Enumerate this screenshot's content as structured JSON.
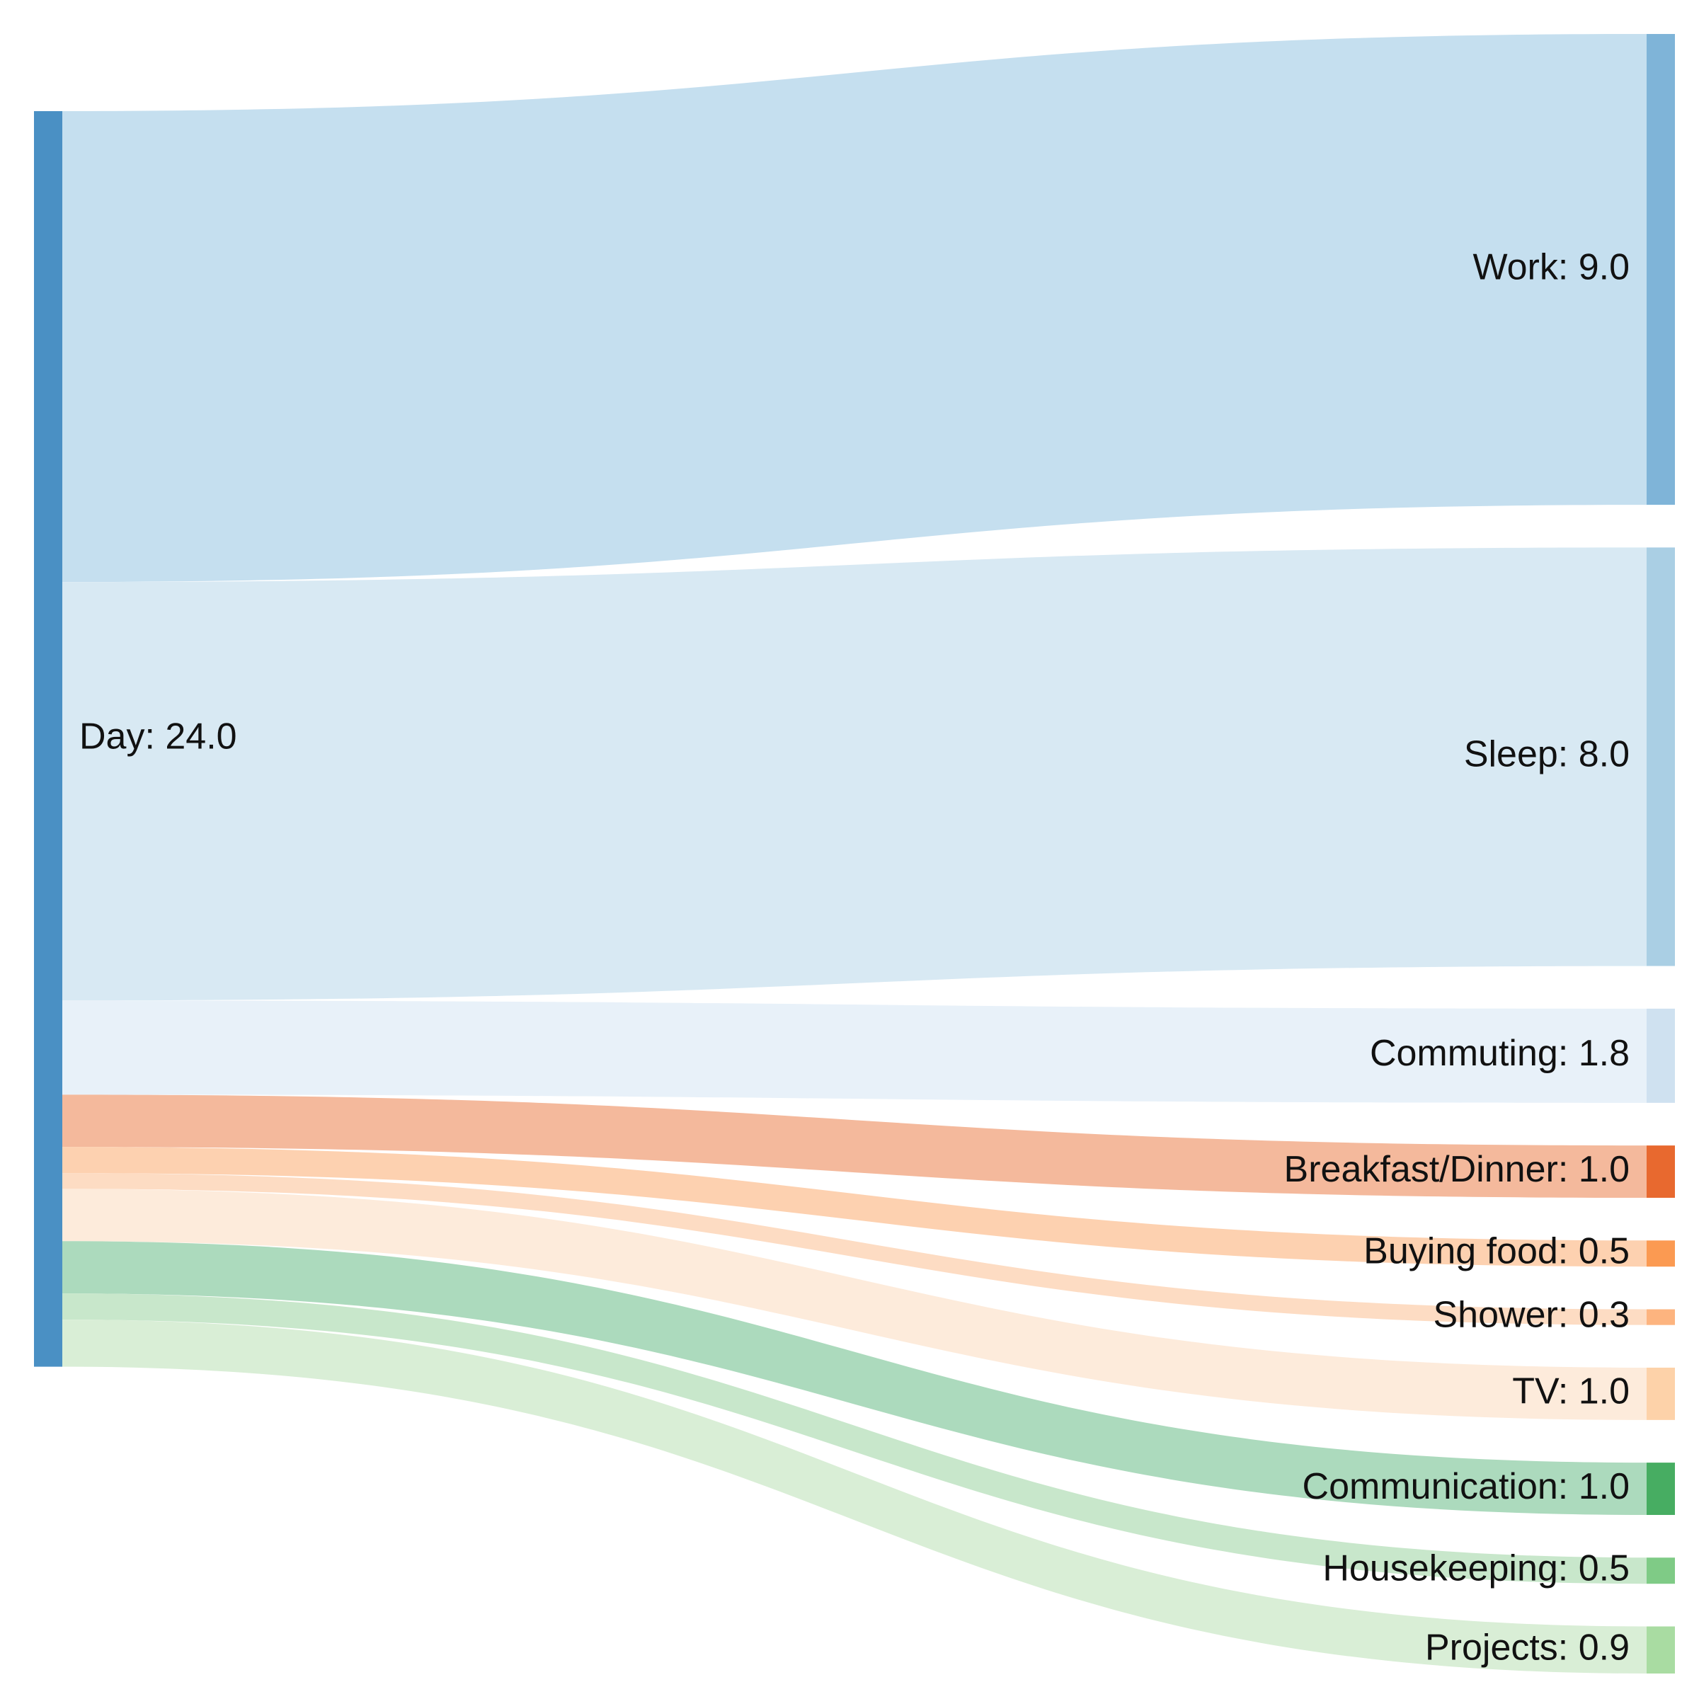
{
  "chart_data": {
    "type": "sankey",
    "title": "",
    "source": {
      "name": "Day",
      "value": 24.0,
      "label": "Day: 24.0",
      "color": "#4a90c4"
    },
    "targets": [
      {
        "name": "Work",
        "value": 9.0,
        "label": "Work: 9.0",
        "node_color": "#7fb4d8",
        "link_color": "#c5dfef"
      },
      {
        "name": "Sleep",
        "value": 8.0,
        "label": "Sleep: 8.0",
        "node_color": "#aacfe4",
        "link_color": "#d8e9f3"
      },
      {
        "name": "Commuting",
        "value": 1.8,
        "label": "Commuting: 1.8",
        "node_color": "#cfe1f0",
        "link_color": "#e8f1f9"
      },
      {
        "name": "Breakfast/Dinner",
        "value": 1.0,
        "label": "Breakfast/Dinner: 1.0",
        "node_color": "#e8692f",
        "link_color": "#f4b99c"
      },
      {
        "name": "Buying food",
        "value": 0.5,
        "label": "Buying food: 0.5",
        "node_color": "#fb9a52",
        "link_color": "#fdd1b0"
      },
      {
        "name": "Shower",
        "value": 0.3,
        "label": "Shower: 0.3",
        "node_color": "#fdb47f",
        "link_color": "#fddcc3"
      },
      {
        "name": "TV",
        "value": 1.0,
        "label": "TV: 1.0",
        "node_color": "#fdd2a9",
        "link_color": "#fdebdb"
      },
      {
        "name": "Communication",
        "value": 1.0,
        "label": "Communication: 1.0",
        "node_color": "#47ad62",
        "link_color": "#acdabd"
      },
      {
        "name": "Housekeeping",
        "value": 0.5,
        "label": "Housekeeping: 0.5",
        "node_color": "#7fcb86",
        "link_color": "#c8e7cb"
      },
      {
        "name": "Projects",
        "value": 0.9,
        "label": "Projects: 0.9",
        "node_color": "#a9dca2",
        "link_color": "#d9eed6"
      }
    ]
  }
}
